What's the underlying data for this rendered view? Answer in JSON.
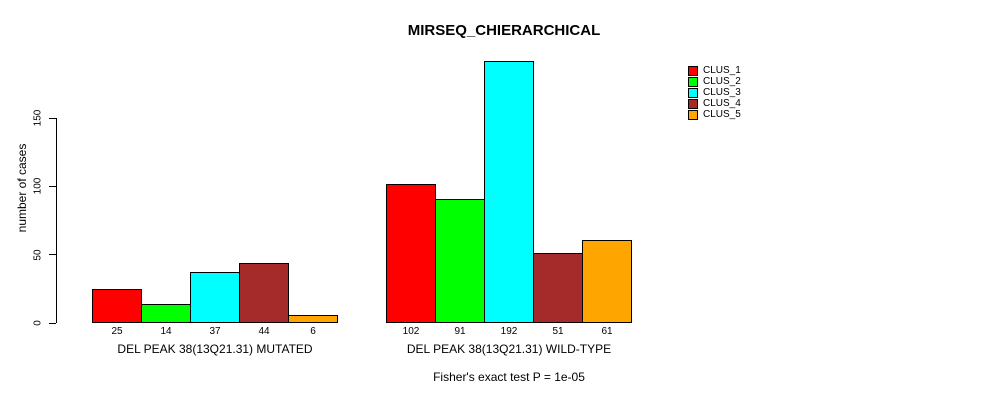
{
  "chart": {
    "title": "MIRSEQ_CHIERARCHICAL",
    "subtitle": "Fisher's exact test P = 1e-05",
    "ylabel": "number of cases"
  },
  "chart_data": {
    "type": "bar",
    "title": "MIRSEQ_CHIERARCHICAL",
    "ylabel": "number of cases",
    "xlabel": "",
    "annotation": "Fisher's exact test P = 1e-05",
    "categories": [
      "DEL PEAK 38(13Q21.31) MUTATED",
      "DEL PEAK 38(13Q21.31) WILD-TYPE"
    ],
    "series": [
      {
        "name": "CLUS_1",
        "color": "#ff0000",
        "values": [
          25,
          102
        ]
      },
      {
        "name": "CLUS_2",
        "color": "#00ff00",
        "values": [
          14,
          91
        ]
      },
      {
        "name": "CLUS_3",
        "color": "#00ffff",
        "values": [
          37,
          192
        ]
      },
      {
        "name": "CLUS_4",
        "color": "#a52a2a",
        "values": [
          44,
          51
        ]
      },
      {
        "name": "CLUS_5",
        "color": "#ffa500",
        "values": [
          6,
          61
        ]
      }
    ],
    "bar_value_labels": [
      [
        25,
        14,
        37,
        44,
        6
      ],
      [
        102,
        91,
        192,
        51,
        61
      ]
    ],
    "yticks": [
      0,
      50,
      100,
      150
    ],
    "ylim": [
      0,
      192
    ],
    "grid": false,
    "legend_position": "right",
    "bar_border_color": "#000000",
    "background_color": "#ffffff"
  }
}
